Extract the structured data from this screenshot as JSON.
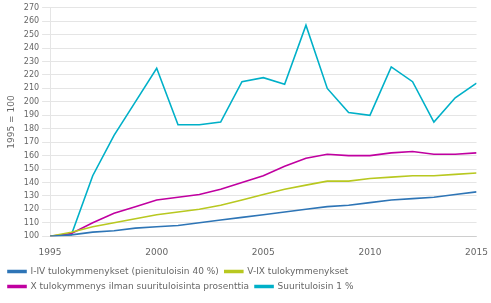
{
  "chart_data": {
    "type": "line",
    "x": [
      1995,
      1996,
      1997,
      1998,
      1999,
      2000,
      2001,
      2002,
      2003,
      2004,
      2005,
      2006,
      2007,
      2008,
      2009,
      2010,
      2011,
      2012,
      2013,
      2014,
      2015
    ],
    "series": [
      {
        "name": "I-IV tulokymmenykset (pienituloisin 40 %)",
        "color": "#2e75b6",
        "values": [
          100,
          101,
          103,
          104,
          106,
          107,
          108,
          110,
          112,
          114,
          116,
          118,
          120,
          122,
          123,
          125,
          127,
          128,
          129,
          131,
          133
        ]
      },
      {
        "name": "V-IX tulokymmenykset",
        "color": "#b8c820",
        "values": [
          100,
          103,
          107,
          110,
          113,
          116,
          118,
          120,
          123,
          127,
          131,
          135,
          138,
          141,
          141,
          143,
          144,
          145,
          145,
          146,
          147
        ]
      },
      {
        "name": "X tulokymmenys ilman suurituloisinta prosenttia",
        "color": "#c000a0",
        "values": [
          100,
          102,
          110,
          117,
          122,
          127,
          129,
          131,
          135,
          140,
          145,
          152,
          158,
          161,
          160,
          160,
          162,
          163,
          161,
          161,
          162
        ]
      },
      {
        "name": "Suurituloisin 1 %",
        "color": "#00b0c8",
        "values": [
          100,
          101,
          145,
          175,
          200,
          225,
          183,
          183,
          185,
          215,
          218,
          213,
          257,
          210,
          192,
          190,
          226,
          215,
          185,
          203,
          214
        ]
      }
    ],
    "y_label": "1995 = 100",
    "xlim": [
      1995,
      2015
    ],
    "xticks": [
      1995,
      2000,
      2005,
      2010,
      2015
    ],
    "ylim": [
      100,
      270
    ],
    "yticks": [
      100,
      110,
      120,
      130,
      140,
      150,
      160,
      170,
      180,
      190,
      200,
      210,
      220,
      230,
      240,
      250,
      260,
      270
    ],
    "grid": "y",
    "legend": "bottom"
  }
}
